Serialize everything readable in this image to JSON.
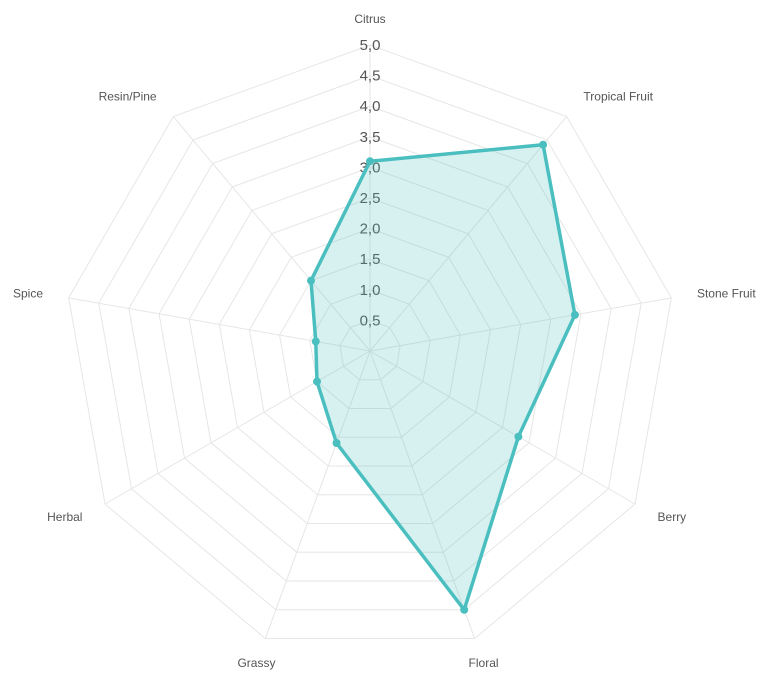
{
  "chart_data": {
    "type": "radar",
    "categories": [
      "Citrus",
      "Tropical Fruit",
      "Stone Fruit",
      "Berry",
      "Floral",
      "Grassy",
      "Herbal",
      "Spice",
      "Resin/Pine"
    ],
    "series": [
      {
        "values": [
          3.1,
          4.4,
          3.4,
          2.8,
          4.5,
          1.6,
          1.0,
          0.9,
          1.5
        ]
      }
    ],
    "rmax": 5.0,
    "rings": [
      0.5,
      1.0,
      1.5,
      2.0,
      2.5,
      3.0,
      3.5,
      4.0,
      4.5,
      5.0
    ],
    "tick_labels": [
      "0,5",
      "1,0",
      "1,5",
      "2,0",
      "2,5",
      "3,0",
      "3,5",
      "4,0",
      "4,5",
      "5,0"
    ],
    "colors": {
      "line": "#4bbfbf",
      "fill": "rgba(75,191,191,0.22)",
      "point": "#4bbfbf",
      "grid": "#e6e6e6"
    }
  }
}
